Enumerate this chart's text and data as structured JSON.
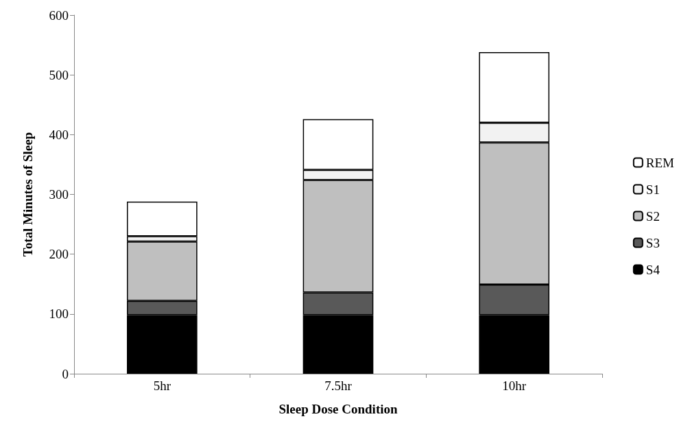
{
  "chart_data": {
    "type": "bar",
    "stacked": true,
    "xlabel": "Sleep Dose Condition",
    "ylabel": "Total Minutes of Sleep",
    "categories": [
      "5hr",
      "7.5hr",
      "10hr"
    ],
    "series": [
      {
        "name": "S4",
        "color": "#000000",
        "values": [
          98,
          98,
          98
        ]
      },
      {
        "name": "S3",
        "color": "#595959",
        "values": [
          24,
          38,
          51
        ]
      },
      {
        "name": "S2",
        "color": "#bfbfbf",
        "values": [
          99,
          188,
          238
        ]
      },
      {
        "name": "S1",
        "color": "#f2f2f2",
        "values": [
          9,
          17,
          33
        ]
      },
      {
        "name": "REM",
        "color": "#ffffff",
        "values": [
          58,
          85,
          118
        ]
      }
    ],
    "ylim": [
      0,
      600
    ],
    "yticks": [
      0,
      100,
      200,
      300,
      400,
      500,
      600
    ],
    "grid": false,
    "legend": "right"
  }
}
